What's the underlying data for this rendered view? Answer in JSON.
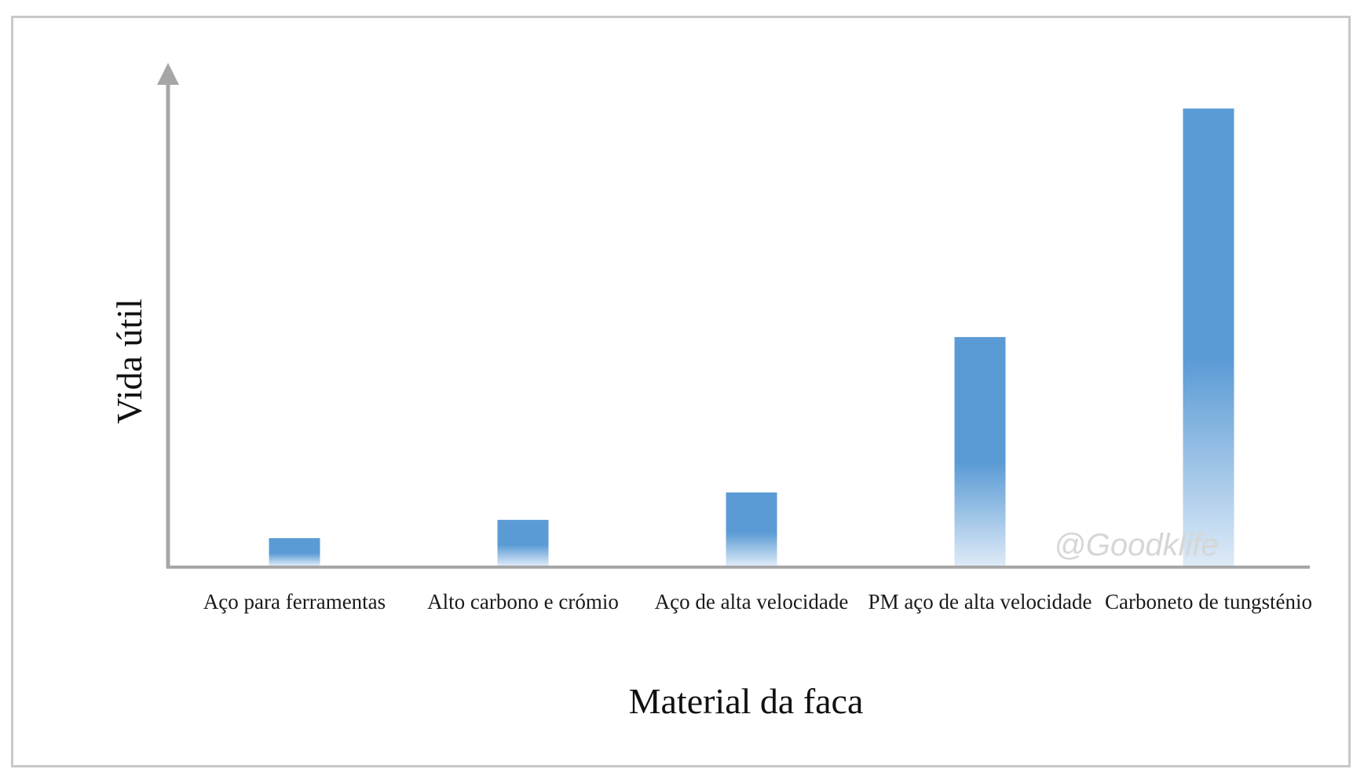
{
  "chart_data": {
    "type": "bar",
    "title": "",
    "xlabel": "Material da faca",
    "ylabel": "Vida útil",
    "categories": [
      "Aço para ferramentas",
      "Alto carbono e crómio",
      "Aço de alta velocidade",
      "PM aço de alta velocidade",
      "Carboneto de tungsténio"
    ],
    "values": [
      6,
      10,
      16,
      50,
      100
    ],
    "ylim": [
      0,
      110
    ],
    "y_ticks_shown": false,
    "grid": false,
    "legend": "none",
    "bar_color": "#5b9bd5",
    "bar_fade_color": "#ddeaf7",
    "axis_color": "#a6a6a6"
  },
  "watermark": "@Goodklife"
}
